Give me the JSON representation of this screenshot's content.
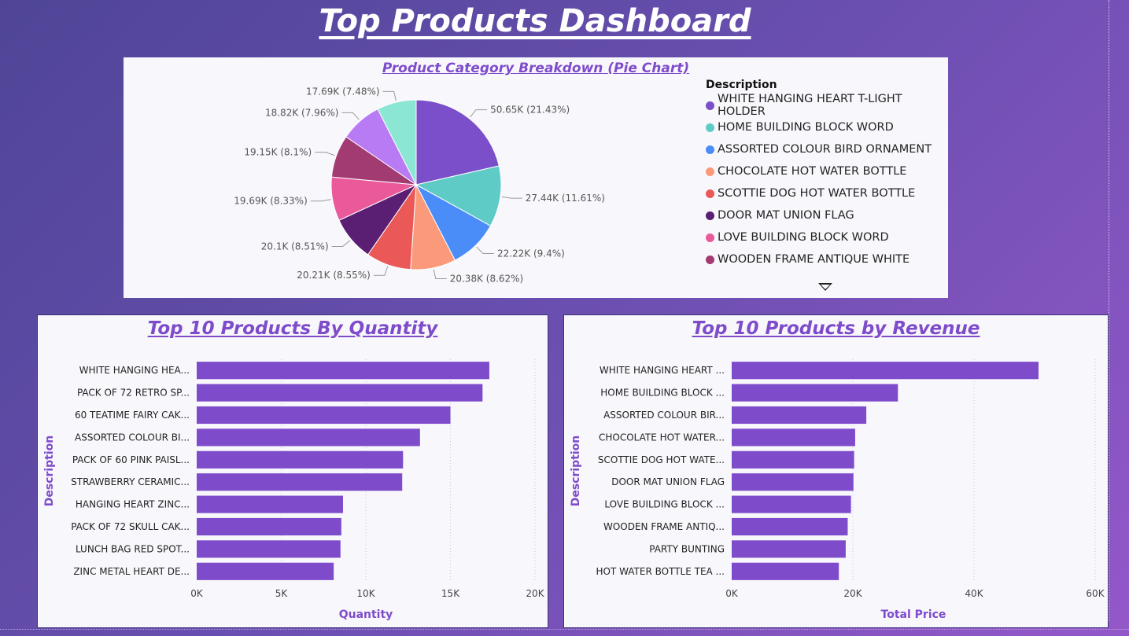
{
  "dashboard": {
    "title": "Top Products Dashboard"
  },
  "colors": {
    "bar": "#7e4ccb",
    "panel_title": "#7e4ccb",
    "axis_title": "#7e4ccb",
    "pie": [
      "#7b4fc9",
      "#5ecbc6",
      "#4b8df8",
      "#fb9a7b",
      "#ea5858",
      "#5a1f72",
      "#ea5a9b",
      "#a33b73",
      "#b97bf4",
      "#8be6d3"
    ]
  },
  "legend_more_icon": "chevron-down-icon",
  "chart_data": [
    {
      "type": "pie",
      "title": "Product Category Breakdown (Pie Chart)",
      "legend_title": "Description",
      "legend_position": "right",
      "legend_entries": [
        "WHITE HANGING HEART T-LIGHT HOLDER",
        "HOME BUILDING BLOCK WORD",
        "ASSORTED COLOUR BIRD ORNAMENT",
        "CHOCOLATE HOT WATER BOTTLE",
        "SCOTTIE DOG HOT WATER BOTTLE",
        "DOOR MAT UNION FLAG",
        "LOVE BUILDING BLOCK WORD",
        "WOODEN FRAME ANTIQUE WHITE"
      ],
      "slices": [
        {
          "value": 50650,
          "label": "50.65K (21.43%)"
        },
        {
          "value": 27440,
          "label": "27.44K (11.61%)"
        },
        {
          "value": 22220,
          "label": "22.22K (9.4%)"
        },
        {
          "value": 20380,
          "label": "20.38K (8.62%)"
        },
        {
          "value": 20210,
          "label": "20.21K (8.55%)"
        },
        {
          "value": 20100,
          "label": "20.1K (8.51%)"
        },
        {
          "value": 19690,
          "label": "19.69K (8.33%)"
        },
        {
          "value": 19150,
          "label": "19.15K (8.1%)"
        },
        {
          "value": 18820,
          "label": "18.82K (7.96%)"
        },
        {
          "value": 17690,
          "label": "17.69K (7.48%)"
        }
      ]
    },
    {
      "type": "bar",
      "orientation": "horizontal",
      "title": "Top 10 Products By Quantity",
      "xlabel": "Quantity",
      "ylabel": "Description",
      "categories": [
        "WHITE HANGING HEA...",
        "PACK OF 72 RETRO SP...",
        "60 TEATIME FAIRY CAK...",
        "ASSORTED COLOUR BI...",
        "PACK OF 60 PINK PAISL...",
        "STRAWBERRY CERAMIC...",
        "HANGING HEART ZINC...",
        "PACK OF 72 SKULL CAK...",
        "LUNCH BAG RED SPOT...",
        "ZINC METAL HEART DE..."
      ],
      "values": [
        17300,
        16900,
        15000,
        13200,
        12200,
        12150,
        8650,
        8550,
        8500,
        8100
      ],
      "xlim": [
        0,
        20000
      ],
      "xticks": [
        0,
        5000,
        10000,
        15000,
        20000
      ],
      "xtick_labels": [
        "0K",
        "5K",
        "10K",
        "15K",
        "20K"
      ],
      "grid": true
    },
    {
      "type": "bar",
      "orientation": "horizontal",
      "title": "Top 10 Products by Revenue",
      "xlabel": "Total Price",
      "ylabel": "Description",
      "categories": [
        "WHITE HANGING HEART ...",
        "HOME BUILDING BLOCK ...",
        "ASSORTED COLOUR BIR...",
        "CHOCOLATE HOT WATER...",
        "SCOTTIE DOG HOT WATE...",
        "DOOR MAT UNION FLAG",
        "LOVE BUILDING BLOCK ...",
        "WOODEN FRAME ANTIQ...",
        "PARTY BUNTING",
        "HOT WATER BOTTLE TEA ..."
      ],
      "values": [
        50650,
        27440,
        22220,
        20380,
        20210,
        20100,
        19690,
        19150,
        18820,
        17690
      ],
      "xlim": [
        0,
        60000
      ],
      "xticks": [
        0,
        20000,
        40000,
        60000
      ],
      "xtick_labels": [
        "0K",
        "20K",
        "40K",
        "60K"
      ],
      "grid": true
    }
  ]
}
